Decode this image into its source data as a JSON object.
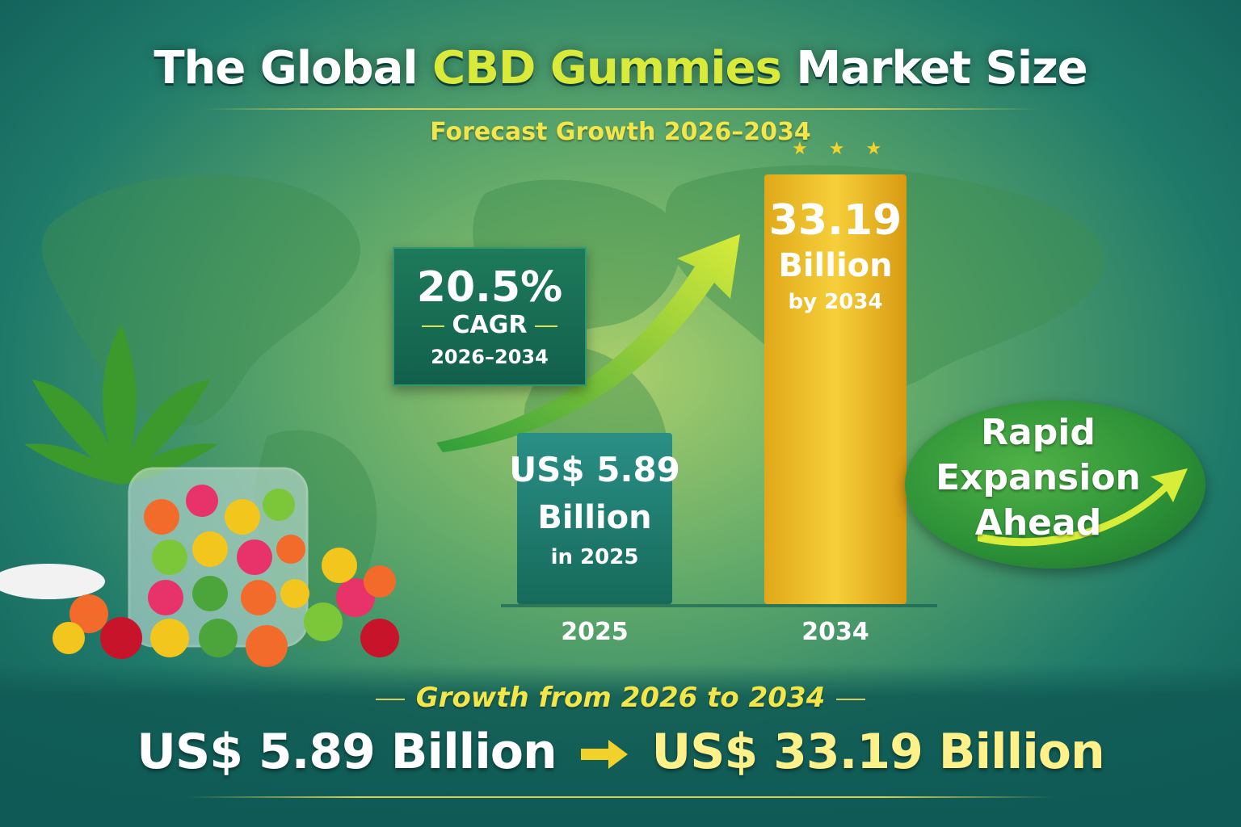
{
  "title": {
    "prefix": "The Global ",
    "highlight": "CBD Gummies",
    "suffix": " Market Size"
  },
  "subtitle": "Forecast Growth 2026–2034",
  "stars": "★★★",
  "cagr": {
    "value": "20.5%",
    "label": "CAGR",
    "years": "2026–2034"
  },
  "callout": {
    "line1": "Rapid",
    "line2": "Expansion",
    "line3": "Ahead"
  },
  "bottom": {
    "growth_text": "Growth from 2026 to 2034",
    "from_value": "US$ 5.89 Billion",
    "to_value": "US$ 33.19 Billion"
  },
  "colors": {
    "bar_2025": "#1f8a6e",
    "bar_2034": "#f0c020",
    "accent": "#f2e64a"
  },
  "chart_data": {
    "type": "bar",
    "categories": [
      "2025",
      "2034"
    ],
    "values": [
      5.89,
      33.19
    ],
    "unit": "Billion",
    "bar_labels": [
      {
        "main": "US$ 5.89",
        "unit": "Billion",
        "note": "in 2025"
      },
      {
        "main": "33.19",
        "unit": "Billion",
        "note": "by 2034"
      }
    ],
    "title": "The Global CBD Gummies Market Size",
    "xlabel": "",
    "ylabel": ""
  }
}
